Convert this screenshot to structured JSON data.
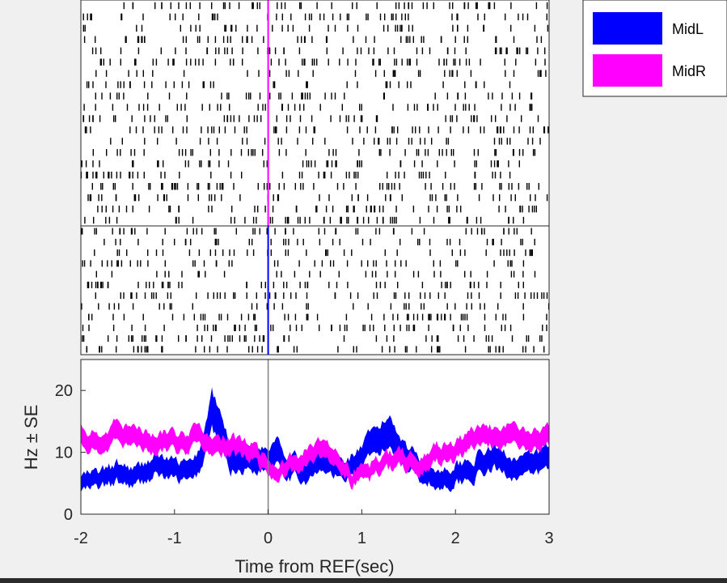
{
  "chart_data": [
    {
      "type": "raster",
      "panel": "MidR",
      "x": [
        -2,
        3
      ],
      "reference_line_x": 0,
      "reference_line_color": "#ff00ff",
      "tick_color": "#000000",
      "trials": 20,
      "approx_rate_hz": 10
    },
    {
      "type": "raster",
      "panel": "MidL",
      "x": [
        -2,
        3
      ],
      "reference_line_x": 0,
      "reference_line_color": "#0000ff",
      "tick_color": "#000000",
      "trials": 12,
      "approx_rate_hz": 9
    },
    {
      "type": "area",
      "xlabel": "Time from REF(sec)",
      "ylabel": "Hz ± SE",
      "xlim": [
        -2,
        3
      ],
      "ylim": [
        0,
        25
      ],
      "xticks": [
        "-2",
        "-1",
        "0",
        "1",
        "2",
        "3"
      ],
      "yticks": [
        "0",
        "10",
        "20"
      ],
      "reference_line_x": 0,
      "series": [
        {
          "name": "MidL",
          "color": "#0000ff",
          "x": [
            -2,
            -1.8,
            -1.6,
            -1.4,
            -1.2,
            -1.0,
            -0.8,
            -0.7,
            -0.6,
            -0.5,
            -0.4,
            -0.2,
            0,
            0.1,
            0.2,
            0.4,
            0.6,
            0.8,
            1.0,
            1.1,
            1.2,
            1.3,
            1.4,
            1.5,
            1.6,
            1.8,
            2.0,
            2.2,
            2.4,
            2.6,
            2.8,
            3.0
          ],
          "mean": [
            5,
            5.5,
            6.5,
            6,
            8,
            7,
            6.5,
            10,
            17,
            13,
            9,
            9,
            9,
            11,
            8,
            7,
            8.5,
            7,
            9,
            11,
            12,
            13.5,
            11,
            9,
            8,
            5.5,
            6.5,
            7.5,
            9,
            8,
            7.5,
            9
          ],
          "se": [
            1.2,
            1.3,
            1.5,
            1.4,
            1.6,
            1.5,
            1.5,
            2,
            3,
            2.5,
            1.8,
            1.8,
            1.8,
            2,
            1.7,
            1.5,
            1.7,
            1.5,
            1.8,
            2,
            2.2,
            2.5,
            2.1,
            1.8,
            1.7,
            1.4,
            1.5,
            1.6,
            1.8,
            1.6,
            1.6,
            1.8
          ]
        },
        {
          "name": "MidR",
          "color": "#ff00ff",
          "x": [
            -2,
            -1.8,
            -1.6,
            -1.4,
            -1.2,
            -1.0,
            -0.8,
            -0.6,
            -0.4,
            -0.2,
            0,
            0.1,
            0.2,
            0.4,
            0.6,
            0.8,
            0.9,
            1.0,
            1.2,
            1.4,
            1.6,
            1.8,
            2.0,
            2.2,
            2.4,
            2.6,
            2.8,
            3.0
          ],
          "mean": [
            13,
            11,
            13.5,
            12,
            12,
            11.5,
            12,
            11,
            11,
            10,
            8,
            7,
            8,
            9,
            11,
            8,
            6,
            6.5,
            7.5,
            9,
            8.5,
            10,
            10,
            12,
            12.5,
            13.5,
            11.5,
            13
          ],
          "se": [
            1.5,
            1.4,
            1.6,
            1.5,
            1.5,
            1.4,
            1.5,
            1.4,
            1.4,
            1.3,
            1.2,
            1.1,
            1.2,
            1.3,
            1.4,
            1.2,
            1.1,
            1.1,
            1.2,
            1.3,
            1.3,
            1.4,
            1.4,
            1.5,
            1.5,
            1.6,
            1.5,
            1.6
          ]
        }
      ]
    }
  ],
  "legend": {
    "entries": [
      {
        "name": "MidL",
        "color": "#0000ff"
      },
      {
        "name": "MidR",
        "color": "#ff00ff"
      }
    ],
    "placement": "top-right"
  }
}
